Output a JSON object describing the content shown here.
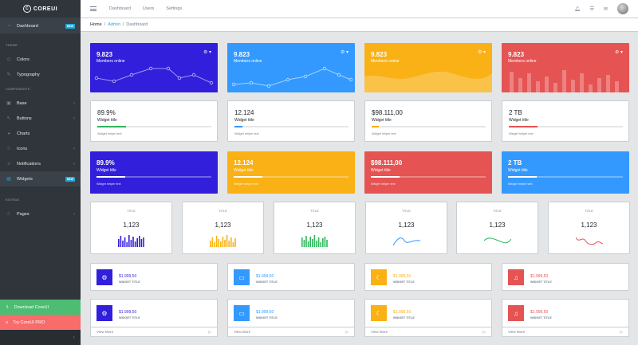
{
  "brand": {
    "logo_letter": "C",
    "name": "COREUI"
  },
  "sidebar": {
    "dashboard": {
      "label": "Dashboard",
      "badge": "NEW"
    },
    "sections": {
      "theme": "THEME",
      "components": "COMPONENTS",
      "extras": "EXTRAS"
    },
    "colors": "Colors",
    "typography": "Typography",
    "base": "Base",
    "buttons": "Buttons",
    "charts": "Charts",
    "icons": "Icons",
    "notifications": "Notifications",
    "widgets": {
      "label": "Widgets",
      "badge": "NEW"
    },
    "pages": "Pages",
    "download": "Download CoreUI",
    "try_pro": "Try CoreUI PRO"
  },
  "header": {
    "nav": [
      "Dashboard",
      "Users",
      "Settings"
    ]
  },
  "breadcrumb": {
    "home": "Home",
    "admin": "Admin",
    "current": "Dashboard"
  },
  "colors": {
    "primary": "#321fdb",
    "info": "#39f",
    "warning": "#f9b115",
    "danger": "#e55353",
    "success": "#2eb85c"
  },
  "row1": [
    {
      "value": "9.823",
      "label": "Members online",
      "chart": "line-points"
    },
    {
      "value": "9.823",
      "label": "Members online",
      "chart": "line-points"
    },
    {
      "value": "9.823",
      "label": "Members online",
      "chart": "area"
    },
    {
      "value": "9.823",
      "label": "Members online",
      "chart": "bars"
    }
  ],
  "row2": [
    {
      "value": "89.9%",
      "label": "Widget title",
      "help": "Widget helper text",
      "progress": 0.25
    },
    {
      "value": "12.124",
      "label": "Widget title",
      "help": "Widget helper text",
      "progress": 0.07
    },
    {
      "value": "$98.111,00",
      "label": "Widget title",
      "help": "Widget helper text",
      "progress": 0.06
    },
    {
      "value": "2 TB",
      "label": "Widget title",
      "help": "Widget helper text",
      "progress": 0.25
    }
  ],
  "row3": [
    {
      "value": "89.9%",
      "label": "Widget title",
      "help": "Widget helper text",
      "progress": 0.25
    },
    {
      "value": "12.124",
      "label": "Widget title",
      "help": "Widget helper text",
      "progress": 0.25
    },
    {
      "value": "$98.111,00",
      "label": "Widget title",
      "help": "Widget helper text",
      "progress": 0.25
    },
    {
      "value": "2 TB",
      "label": "Widget title",
      "help": "Widget helper text",
      "progress": 0.25
    }
  ],
  "row4": [
    {
      "title": "TITLE",
      "value": "1,123",
      "chart": "bars",
      "color": "#321fdb"
    },
    {
      "title": "TITLE",
      "value": "1,123",
      "chart": "bars",
      "color": "#f9b115"
    },
    {
      "title": "TITLE",
      "value": "1,123",
      "chart": "bars",
      "color": "#2eb85c"
    },
    {
      "title": "TITLE",
      "value": "1,123",
      "chart": "line",
      "color": "#39f"
    },
    {
      "title": "TITLE",
      "value": "1,123",
      "chart": "line",
      "color": "#2eb85c"
    },
    {
      "title": "TITLE",
      "value": "1,123",
      "chart": "line",
      "color": "#e55353"
    }
  ],
  "row5": [
    {
      "value": "$1.999,50",
      "label": "WIDGET TITLE",
      "icon": "gear-icon"
    },
    {
      "value": "$1.999,50",
      "label": "WIDGET TITLE",
      "icon": "laptop-icon"
    },
    {
      "value": "$1.999,50",
      "label": "WIDGET TITLE",
      "icon": "moon-icon"
    },
    {
      "value": "$1.999,50",
      "label": "WIDGET TITLE",
      "icon": "bell-icon"
    }
  ],
  "row6": [
    {
      "value": "$1.999,50",
      "label": "WIDGET TITLE",
      "icon": "gear-icon",
      "footer": "View More"
    },
    {
      "value": "$1.999,50",
      "label": "WIDGET TITLE",
      "icon": "laptop-icon",
      "footer": "View More"
    },
    {
      "value": "$1.999,50",
      "label": "WIDGET TITLE",
      "icon": "moon-icon",
      "footer": "View More"
    },
    {
      "value": "$1.999,50",
      "label": "WIDGET TITLE",
      "icon": "bell-icon",
      "footer": "View More"
    }
  ]
}
